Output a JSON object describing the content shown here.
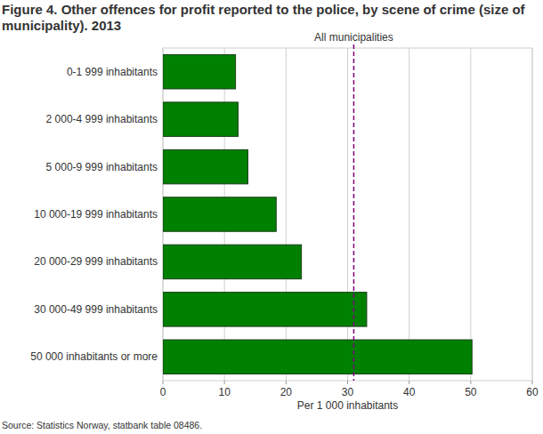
{
  "chart_data": {
    "type": "bar",
    "orientation": "horizontal",
    "title": "Figure 4. Other offences for profit reported to the police, by scene of crime (size of municipality). 2013",
    "x_label": "Per 1 000 inhabitants",
    "source": "Source: Statistics Norway, statbank table 08486.",
    "categories": [
      "0-1 999 inhabitants",
      "2 000-4 999 inhabitants",
      "5 000-9 999 inhabitants",
      "10 000-19 999 inhabitants",
      "20 000-29 999 inhabitants",
      "30 000-49 999 inhabitants",
      "50 000 inhabitants or more"
    ],
    "values": [
      11.8,
      12.2,
      13.8,
      18.4,
      22.5,
      33.1,
      50.2
    ],
    "color": "#008000",
    "xlim": [
      0,
      60
    ],
    "xticks": [
      0,
      10,
      20,
      30,
      40,
      50,
      60
    ],
    "grid": true,
    "reference_line": {
      "value": 31,
      "label": "All municipalities",
      "color": "#800080"
    }
  }
}
